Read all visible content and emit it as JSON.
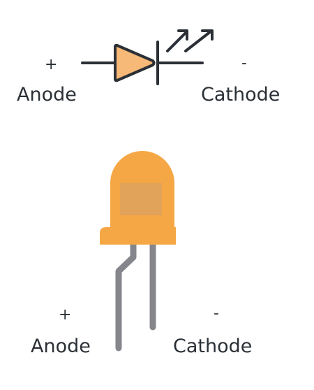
{
  "symbol": {
    "anode_sign": "+",
    "anode_label": "Anode",
    "cathode_sign": "-",
    "cathode_label": "Cathode"
  },
  "physical": {
    "anode_sign": "+",
    "anode_label": "Anode",
    "cathode_sign": "-",
    "cathode_label": "Cathode"
  },
  "colors": {
    "outline": "#2b3036",
    "symbol_fill": "#f7b978",
    "led_body": "#f5a745",
    "led_window": "#d9a062",
    "leads": "#85868c"
  },
  "icons": {
    "symbol": "led-schematic-symbol-icon",
    "physical": "led-component-icon"
  }
}
